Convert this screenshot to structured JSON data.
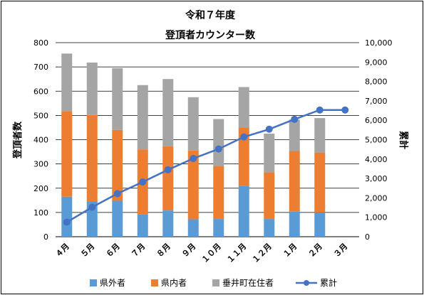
{
  "chart_data": {
    "type": "bar",
    "stacked": true,
    "title": "令和７年度",
    "subtitle": "登頂者カウンター数",
    "categories": [
      "４月",
      "５月",
      "６月",
      "７月",
      "８月",
      "９月",
      "１０月",
      "１１月",
      "１２月",
      "１月",
      "２月",
      "３月"
    ],
    "series": [
      {
        "name": "県外者",
        "color": "#5B9BD5",
        "values": [
          165,
          145,
          148,
          93,
          108,
          72,
          73,
          210,
          73,
          103,
          100,
          0
        ]
      },
      {
        "name": "県内者",
        "color": "#ED7D31",
        "values": [
          353,
          357,
          292,
          267,
          265,
          283,
          217,
          240,
          192,
          250,
          247,
          0
        ]
      },
      {
        "name": "垂井町在住者",
        "color": "#A5A5A5",
        "values": [
          237,
          216,
          255,
          265,
          277,
          220,
          195,
          167,
          160,
          130,
          142,
          0
        ]
      },
      {
        "name": "累計",
        "color": "#4472C4",
        "type": "line",
        "axis": "right",
        "values": [
          750,
          1520,
          2220,
          2820,
          3450,
          4030,
          4520,
          5140,
          5540,
          6050,
          6530,
          6530
        ]
      }
    ],
    "ylabel": "登頂者数",
    "ylabel_right": "累計",
    "ylim": [
      0,
      800
    ],
    "yticks": [
      "0",
      "100",
      "200",
      "300",
      "400",
      "500",
      "600",
      "700",
      "800"
    ],
    "ylim_right": [
      0,
      10000
    ],
    "yticks_right": [
      "0",
      "1,000",
      "2,000",
      "3,000",
      "4,000",
      "5,000",
      "6,000",
      "7,000",
      "8,000",
      "9,000",
      "10,000"
    ],
    "grid": true,
    "legend_position": "bottom"
  }
}
